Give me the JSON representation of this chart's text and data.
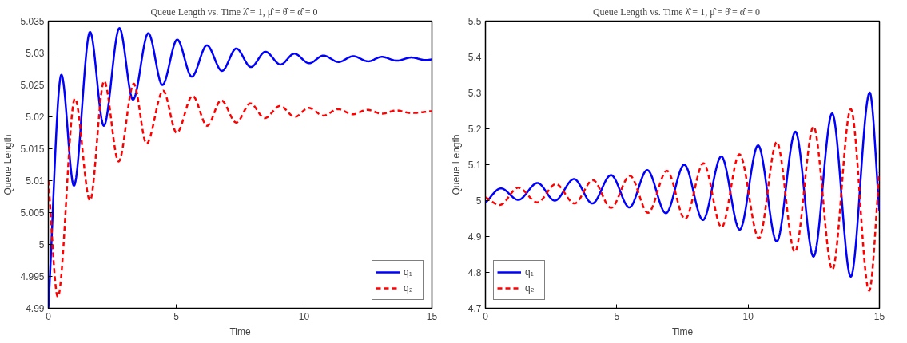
{
  "chart_data": [
    {
      "type": "line",
      "title": "Queue Length vs. Time      λ̂ = 1, μ̂ = θ̂ = α̂ = 0",
      "xlabel": "Time",
      "ylabel": "Queue Length",
      "xlim": [
        0,
        15
      ],
      "xticks": [
        0,
        5,
        10,
        15
      ],
      "ylim": [
        4.99,
        5.035
      ],
      "yticks": [
        4.99,
        4.995,
        5,
        5.005,
        5.01,
        5.015,
        5.02,
        5.025,
        5.03,
        5.035
      ],
      "grid": false,
      "legend": "bottom right",
      "series": [
        {
          "name": "q₁",
          "color": "#0000ff",
          "line_style": "solid",
          "x": [
            0,
            0.51,
            1.0,
            1.63,
            2.17,
            2.78,
            3.31,
            3.91,
            4.46,
            5.04,
            5.61,
            6.2,
            6.79,
            7.35,
            7.92,
            8.49,
            9.08,
            9.62,
            10.2,
            10.76,
            11.35,
            11.92,
            12.51,
            13.04,
            13.63,
            14.19,
            14.75,
            15
          ],
          "values": [
            4.99,
            5.0266,
            5.0092,
            5.0333,
            5.0186,
            5.0339,
            5.0227,
            5.0331,
            5.025,
            5.0321,
            5.0263,
            5.0312,
            5.0272,
            5.0307,
            5.0278,
            5.0302,
            5.0282,
            5.0299,
            5.0284,
            5.0296,
            5.0286,
            5.0295,
            5.0287,
            5.0294,
            5.0288,
            5.0293,
            5.0289,
            5.029
          ]
        },
        {
          "name": "q₂",
          "color": "#ff0000",
          "line_style": "dashed",
          "x": [
            0,
            0.37,
            1.04,
            1.63,
            2.18,
            2.75,
            3.34,
            3.84,
            4.49,
            5.02,
            5.64,
            6.21,
            6.76,
            7.35,
            7.9,
            8.46,
            9.06,
            9.64,
            10.18,
            10.76,
            11.33,
            11.91,
            12.47,
            13.04,
            13.61,
            14.19,
            15
          ],
          "values": [
            5.01,
            4.9918,
            5.0229,
            5.0069,
            5.0256,
            5.013,
            5.0252,
            5.0158,
            5.0241,
            5.0175,
            5.0233,
            5.0186,
            5.0226,
            5.0191,
            5.0221,
            5.0198,
            5.0217,
            5.02,
            5.0214,
            5.0202,
            5.0212,
            5.0204,
            5.0211,
            5.0205,
            5.021,
            5.0206,
            5.0209
          ]
        }
      ]
    },
    {
      "type": "line",
      "title": "Queue Length vs. Time      λ̂ = 1, μ̂ = θ̂ = α̂ = 0",
      "xlabel": "Time",
      "ylabel": "Queue Length",
      "xlim": [
        0,
        15
      ],
      "xticks": [
        0,
        5,
        10,
        15
      ],
      "ylim": [
        4.7,
        5.5
      ],
      "yticks": [
        4.7,
        4.8,
        4.9,
        5,
        5.1,
        5.2,
        5.3,
        5.4,
        5.5
      ],
      "grid": false,
      "legend": "bottom left",
      "series": [
        {
          "name": "q₁",
          "color": "#0000ff",
          "line_style": "solid",
          "x": [
            0,
            0.59,
            1.25,
            1.98,
            2.64,
            3.37,
            4.07,
            4.78,
            5.48,
            6.16,
            6.87,
            7.57,
            8.28,
            8.98,
            9.68,
            10.38,
            11.09,
            11.8,
            12.49,
            13.2,
            13.91,
            14.63,
            15
          ],
          "values": [
            4.994,
            5.034,
            5.002,
            5.049,
            5.0,
            5.06,
            4.992,
            5.071,
            4.981,
            5.085,
            4.965,
            5.1,
            4.946,
            5.123,
            4.919,
            5.154,
            4.886,
            5.192,
            4.844,
            5.243,
            4.788,
            5.301,
            4.97
          ]
        },
        {
          "name": "q₂",
          "color": "#ff0000",
          "line_style": "dashed",
          "x": [
            0,
            0.55,
            1.25,
            1.98,
            2.68,
            3.39,
            4.09,
            4.78,
            5.5,
            6.19,
            6.91,
            7.6,
            8.3,
            8.99,
            9.67,
            10.41,
            11.09,
            11.78,
            12.49,
            13.21,
            13.91,
            14.61,
            15
          ],
          "values": [
            5.009,
            4.988,
            5.036,
            4.995,
            5.046,
            4.992,
            5.057,
            4.98,
            5.069,
            4.966,
            5.083,
            4.949,
            5.104,
            4.926,
            5.129,
            4.895,
            5.163,
            4.857,
            5.206,
            4.808,
            5.255,
            4.749,
            5.078
          ]
        }
      ]
    }
  ]
}
